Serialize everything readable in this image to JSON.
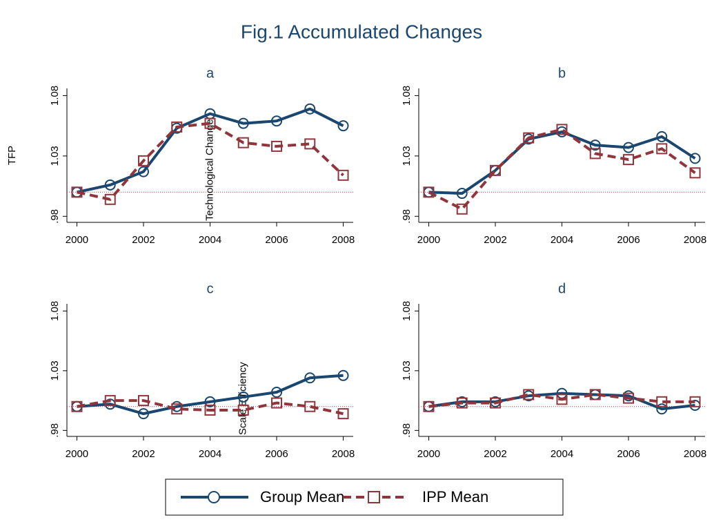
{
  "title": "Fig.1 Accumulated Changes",
  "chart_data": [
    {
      "type": "line",
      "title": "a",
      "ylabel": "TFP",
      "x": [
        2000,
        2001,
        2002,
        2003,
        2004,
        2005,
        2006,
        2007,
        2008
      ],
      "series": [
        {
          "name": "Group Mean",
          "color": "#1a476f",
          "values": [
            1.0,
            1.006,
            1.017,
            1.053,
            1.065,
            1.057,
            1.059,
            1.069,
            1.055
          ]
        },
        {
          "name": "IPP Mean",
          "color": "#90353b",
          "values": [
            1.0,
            0.994,
            1.026,
            1.054,
            1.057,
            1.041,
            1.038,
            1.04,
            1.014
          ]
        }
      ],
      "xlim": [
        1999.7,
        2008.3
      ],
      "xticks": [
        2000,
        2002,
        2004,
        2006,
        2008
      ],
      "ylim": [
        0.975,
        1.086
      ],
      "yticks": [
        {
          "value": 0.98,
          "label": ".98"
        },
        1.03,
        1.08
      ],
      "refline": 1.0,
      "annotation": {
        "text": "Technological Change",
        "x": 2004
      }
    },
    {
      "type": "line",
      "title": "b",
      "x": [
        2000,
        2001,
        2002,
        2003,
        2004,
        2005,
        2006,
        2007,
        2008
      ],
      "series": [
        {
          "name": "Group Mean",
          "color": "#1a476f",
          "values": [
            1.0,
            0.999,
            1.018,
            1.044,
            1.05,
            1.039,
            1.037,
            1.046,
            1.028
          ]
        },
        {
          "name": "IPP Mean",
          "color": "#90353b",
          "values": [
            1.0,
            0.986,
            1.018,
            1.045,
            1.052,
            1.032,
            1.027,
            1.036,
            1.016
          ]
        }
      ],
      "xlim": [
        1999.7,
        2008.3
      ],
      "xticks": [
        2000,
        2002,
        2004,
        2006,
        2008
      ],
      "ylim": [
        0.975,
        1.086
      ],
      "yticks": [
        {
          "value": 0.98,
          "label": ".98"
        },
        1.03,
        1.08
      ],
      "refline": 1.0
    },
    {
      "type": "line",
      "title": "c",
      "x": [
        2000,
        2001,
        2002,
        2003,
        2004,
        2005,
        2006,
        2007,
        2008
      ],
      "series": [
        {
          "name": "Group Mean",
          "color": "#1a476f",
          "values": [
            1.0,
            1.002,
            0.994,
            1.0,
            1.004,
            1.008,
            1.012,
            1.024,
            1.026
          ]
        },
        {
          "name": "IPP Mean",
          "color": "#90353b",
          "values": [
            1.0,
            1.005,
            1.005,
            0.998,
            0.997,
            0.997,
            1.003,
            1.0,
            0.994
          ]
        }
      ],
      "xlim": [
        1999.7,
        2008.3
      ],
      "xticks": [
        2000,
        2002,
        2004,
        2006,
        2008
      ],
      "ylim": [
        0.975,
        1.086
      ],
      "yticks": [
        {
          "value": 0.98,
          "label": ".98"
        },
        1.03,
        1.08
      ],
      "refline": 1.0,
      "annotation": {
        "text": "Scale Efficiency",
        "x": 2005
      }
    },
    {
      "type": "line",
      "title": "d",
      "x": [
        2000,
        2001,
        2002,
        2003,
        2004,
        2005,
        2006,
        2007,
        2008
      ],
      "series": [
        {
          "name": "Group Mean",
          "color": "#1a476f",
          "values": [
            1.0,
            1.004,
            1.004,
            1.009,
            1.011,
            1.01,
            1.009,
            0.998,
            1.001
          ]
        },
        {
          "name": "IPP Mean",
          "color": "#90353b",
          "values": [
            1.0,
            1.003,
            1.003,
            1.01,
            1.006,
            1.01,
            1.007,
            1.004,
            1.004
          ]
        }
      ],
      "xlim": [
        1999.7,
        2008.3
      ],
      "xticks": [
        2000,
        2002,
        2004,
        2006,
        2008
      ],
      "ylim": [
        0.975,
        1.086
      ],
      "yticks": [
        {
          "value": 0.98,
          "label": ".98"
        },
        1.03,
        1.08
      ],
      "refline": 1.0
    }
  ]
}
